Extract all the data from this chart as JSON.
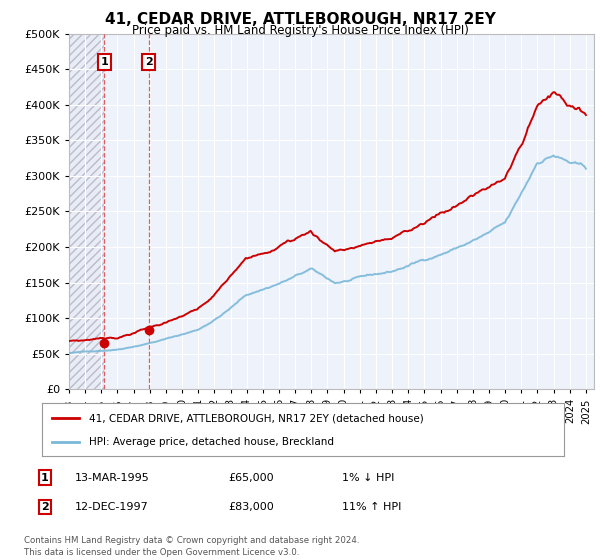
{
  "title": "41, CEDAR DRIVE, ATTLEBOROUGH, NR17 2EY",
  "subtitle": "Price paid vs. HM Land Registry's House Price Index (HPI)",
  "legend_line1": "41, CEDAR DRIVE, ATTLEBOROUGH, NR17 2EY (detached house)",
  "legend_line2": "HPI: Average price, detached house, Breckland",
  "footer": "Contains HM Land Registry data © Crown copyright and database right 2024.\nThis data is licensed under the Open Government Licence v3.0.",
  "table_rows": [
    {
      "num": "1",
      "date": "13-MAR-1995",
      "price": "£65,000",
      "change": "1% ↓ HPI"
    },
    {
      "num": "2",
      "date": "12-DEC-1997",
      "price": "£83,000",
      "change": "11% ↑ HPI"
    }
  ],
  "sale1_x": 1995.19,
  "sale1_y": 65000,
  "sale2_x": 1997.94,
  "sale2_y": 83000,
  "hpi_color": "#7ab8d9",
  "price_color": "#cc0000",
  "background_color": "#ffffff",
  "plot_bg_color": "#eef2fb",
  "ylim": [
    0,
    500000
  ],
  "xlim_start": 1993.0,
  "xlim_end": 2025.5,
  "yticks": [
    0,
    50000,
    100000,
    150000,
    200000,
    250000,
    300000,
    350000,
    400000,
    450000,
    500000
  ],
  "ytick_labels": [
    "£0",
    "£50K",
    "£100K",
    "£150K",
    "£200K",
    "£250K",
    "£300K",
    "£350K",
    "£400K",
    "£450K",
    "£500K"
  ]
}
